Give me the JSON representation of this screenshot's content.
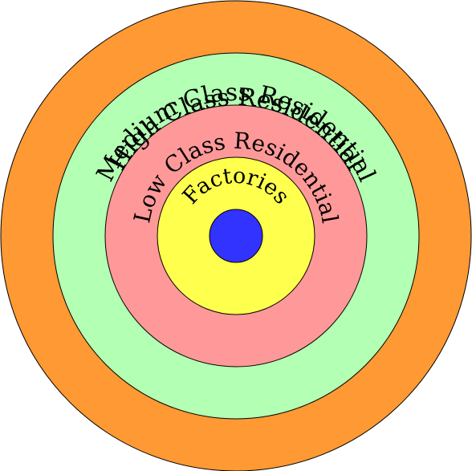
{
  "zones": [
    {
      "id": "high",
      "label": "High Class Residential",
      "color": "#ff9933"
    },
    {
      "id": "medium",
      "label": "Medium Class Residential",
      "color": "#b3ffb3"
    },
    {
      "id": "low",
      "label": "Low Class Residential",
      "color": "#ff9999"
    },
    {
      "id": "factories",
      "label": "Factories",
      "color": "#ffff4d"
    },
    {
      "id": "center",
      "label": "",
      "color": "#3333ff"
    }
  ]
}
